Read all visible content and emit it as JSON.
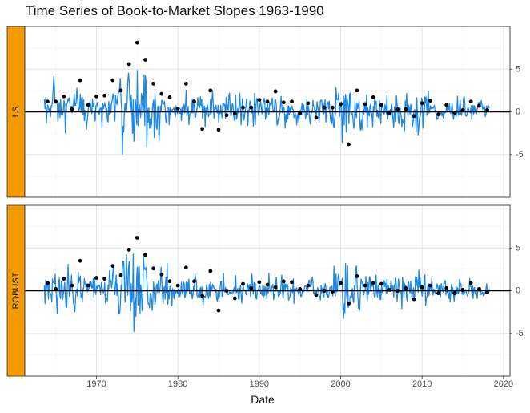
{
  "chart_data": {
    "type": "line",
    "title": "Time Series of Book-to-Market Slopes 1963-1990",
    "xlabel": "Date",
    "ylabel": "",
    "xlim": [
      1961.2,
      2020.8
    ],
    "ylim": [
      -10,
      10
    ],
    "x_ticks": [
      1970,
      1980,
      1990,
      2000,
      2010,
      2020
    ],
    "y_ticks": [
      -5,
      0,
      5
    ],
    "grid": true,
    "strip_color": "#F29A00",
    "line_color": "#1E88E5",
    "point_color": "#000000",
    "panels": [
      {
        "label": "LS",
        "annual_points": {
          "x": [
            1964,
            1965,
            1966,
            1967,
            1968,
            1969,
            1970,
            1971,
            1972,
            1973,
            1974,
            1975,
            1976,
            1977,
            1978,
            1979,
            1980,
            1981,
            1982,
            1983,
            1984,
            1985,
            1986,
            1987,
            1988,
            1989,
            1990,
            1991,
            1992,
            1993,
            1994,
            1995,
            1996,
            1997,
            1998,
            1999,
            2000,
            2001,
            2002,
            2003,
            2004,
            2005,
            2006,
            2007,
            2008,
            2009,
            2010,
            2011,
            2012,
            2013,
            2014,
            2015,
            2016,
            2017,
            2018
          ],
          "y": [
            1.2,
            1.2,
            1.8,
            0.3,
            3.7,
            0.8,
            1.8,
            1.9,
            3.7,
            2.5,
            5.6,
            8.1,
            6.1,
            3.3,
            2.1,
            1.7,
            0.4,
            3.3,
            1.2,
            -2.0,
            2.5,
            -2.1,
            -0.4,
            -0.2,
            0.5,
            0.5,
            1.4,
            1.2,
            2.4,
            1.1,
            1.2,
            -0.2,
            1.0,
            -0.7,
            0.5,
            0.5,
            0.9,
            -3.8,
            2.5,
            0.9,
            1.7,
            0.8,
            -0.2,
            0.3,
            0.3,
            -0.5,
            1.0,
            1.3,
            -0.3,
            0.8,
            -0.1,
            0.2,
            1.2,
            0.7,
            0.2
          ]
        }
      },
      {
        "label": "ROBUST",
        "annual_points": {
          "x": [
            1964,
            1965,
            1966,
            1967,
            1968,
            1969,
            1970,
            1971,
            1972,
            1973,
            1974,
            1975,
            1976,
            1977,
            1978,
            1979,
            1980,
            1981,
            1982,
            1983,
            1984,
            1985,
            1986,
            1987,
            1988,
            1989,
            1990,
            1991,
            1992,
            1993,
            1994,
            1995,
            1996,
            1997,
            1998,
            1999,
            2000,
            2001,
            2002,
            2003,
            2004,
            2005,
            2006,
            2007,
            2008,
            2009,
            2010,
            2011,
            2012,
            2013,
            2014,
            2015,
            2016,
            2017,
            2018
          ],
          "y": [
            0.9,
            0.2,
            1.4,
            0.6,
            3.5,
            0.6,
            1.5,
            1.4,
            2.9,
            1.8,
            4.8,
            6.2,
            4.2,
            2.6,
            1.9,
            1.1,
            0.6,
            2.7,
            1.1,
            -0.6,
            2.3,
            -2.3,
            0.0,
            -0.9,
            0.8,
            0.3,
            1.0,
            0.7,
            0.4,
            1.1,
            1.0,
            0.2,
            0.6,
            -0.5,
            0.0,
            -0.1,
            0.9,
            -1.5,
            1.7,
            0.6,
            0.9,
            0.8,
            0.1,
            0.0,
            0.3,
            -1.0,
            0.4,
            0.6,
            -0.3,
            0.3,
            -0.3,
            0.1,
            0.9,
            0.2,
            -0.2
          ]
        }
      }
    ]
  }
}
